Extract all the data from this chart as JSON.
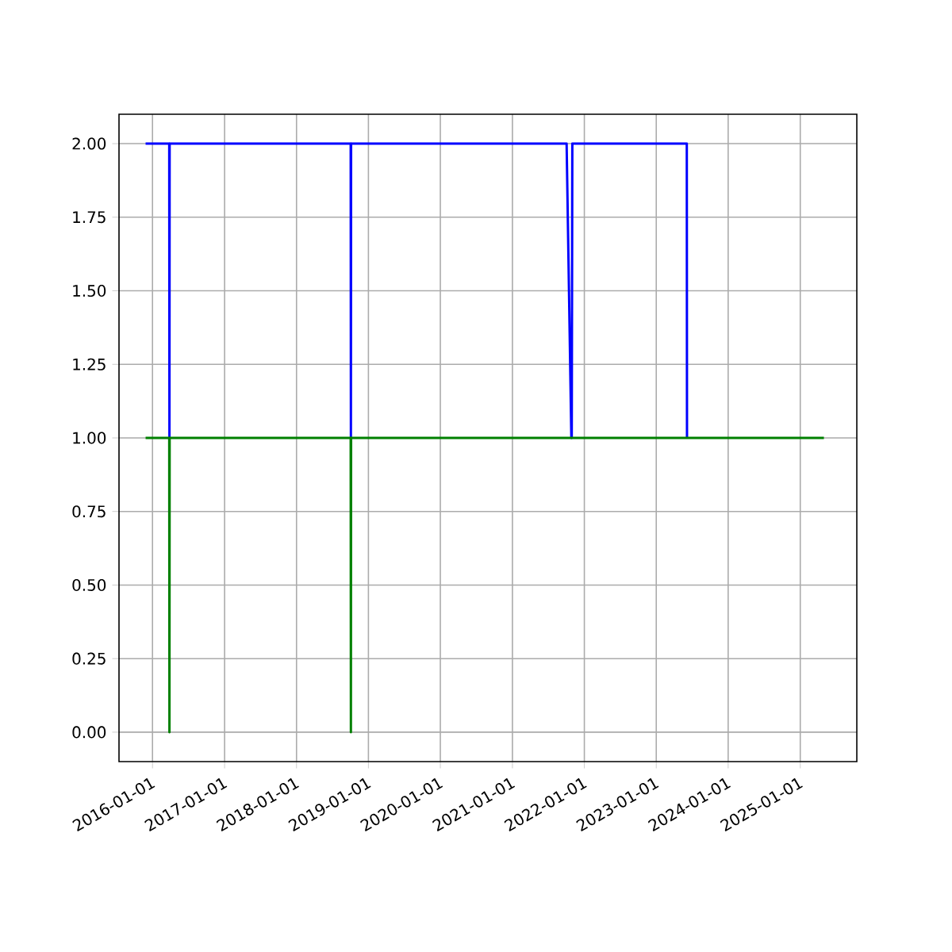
{
  "chart_data": {
    "type": "line",
    "xlim": [
      "2015-07-15",
      "2025-10-15"
    ],
    "ylim": [
      -0.1,
      2.1
    ],
    "xticks": [
      "2016-01-01",
      "2017-01-01",
      "2018-01-01",
      "2019-01-01",
      "2020-01-01",
      "2021-01-01",
      "2022-01-01",
      "2023-01-01",
      "2024-01-01",
      "2025-01-01"
    ],
    "yticks": [
      {
        "value": 0,
        "label": "0.00"
      },
      {
        "value": 0.25,
        "label": "0.25"
      },
      {
        "value": 0.5,
        "label": "0.50"
      },
      {
        "value": 0.75,
        "label": "0.75"
      },
      {
        "value": 1,
        "label": "1.00"
      },
      {
        "value": 1.25,
        "label": "1.25"
      },
      {
        "value": 1.5,
        "label": "1.50"
      },
      {
        "value": 1.75,
        "label": "1.75"
      },
      {
        "value": 2,
        "label": "2.00"
      }
    ],
    "grid": true,
    "marker": "none",
    "line_style": "solid",
    "series": [
      {
        "color": "#0000ff",
        "x": [
          "2015-11-27",
          "2016-03-26",
          "2016-03-27",
          "2016-03-28",
          "2018-10-03",
          "2018-10-04",
          "2018-10-05",
          "2021-10-03",
          "2021-10-27",
          "2021-10-29",
          "2021-11-01",
          "2023-06-05",
          "2023-06-06"
        ],
        "values": [
          2,
          2,
          1,
          2,
          2,
          1,
          2,
          2,
          1,
          1,
          2,
          2,
          1
        ]
      },
      {
        "color": "#008000",
        "x": [
          "2015-11-27",
          "2016-03-26",
          "2016-03-27",
          "2016-03-28",
          "2018-10-03",
          "2018-10-04",
          "2018-10-05",
          "2025-05-01"
        ],
        "values": [
          1,
          1,
          0,
          1,
          1,
          0,
          1,
          1
        ]
      }
    ]
  }
}
